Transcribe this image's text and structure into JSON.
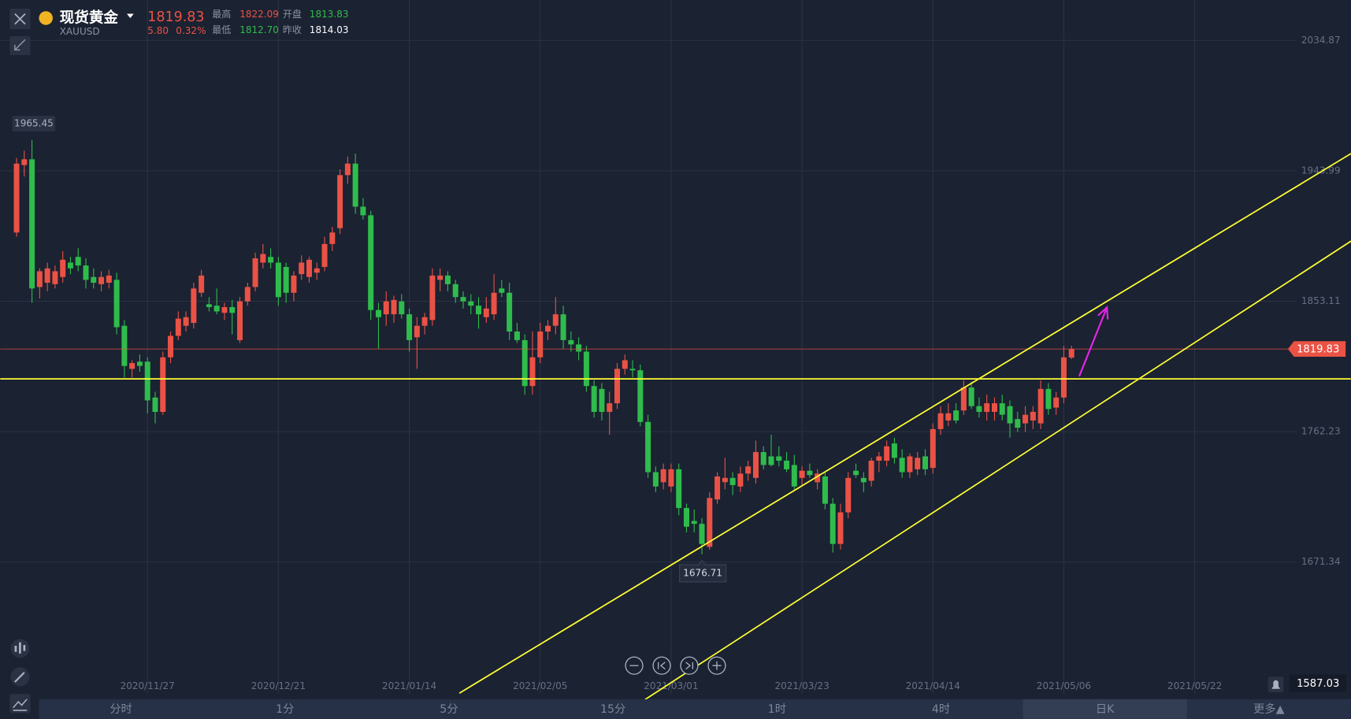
{
  "header": {
    "name": "现货黄金",
    "symbol": "XAUUSD",
    "last": "1819.83",
    "change": "5.80",
    "change_pct": "0.32%",
    "high_label": "最高",
    "high": "1822.09",
    "open_label": "开盘",
    "open": "1813.83",
    "low_label": "最低",
    "low": "1812.70",
    "prev_close_label": "昨收",
    "prev_close": "1814.03"
  },
  "chart_data": {
    "type": "candlestick",
    "categories": [
      null,
      null,
      null,
      null,
      null,
      null,
      null,
      null,
      null,
      null,
      null,
      null,
      null,
      null,
      null,
      null,
      null,
      "2020/11/27",
      null,
      null,
      null,
      null,
      null,
      null,
      null,
      null,
      null,
      null,
      null,
      null,
      null,
      null,
      null,
      null,
      "2020/12/21",
      null,
      null,
      null,
      null,
      null,
      null,
      null,
      null,
      null,
      null,
      null,
      null,
      null,
      null,
      null,
      null,
      "2021/01/14",
      null,
      null,
      null,
      null,
      null,
      null,
      null,
      null,
      null,
      null,
      null,
      null,
      null,
      null,
      null,
      null,
      "2021/02/05",
      null,
      null,
      null,
      null,
      null,
      null,
      null,
      null,
      null,
      null,
      null,
      null,
      null,
      null,
      null,
      null,
      "2021/03/01",
      null,
      null,
      null,
      null,
      null,
      null,
      null,
      null,
      null,
      null,
      null,
      null,
      null,
      null,
      null,
      null,
      "2021/03/23",
      null,
      null,
      null,
      null,
      null,
      null,
      null,
      null,
      null,
      null,
      null,
      null,
      null,
      null,
      null,
      null,
      "2021/04/14",
      null,
      null,
      null,
      null,
      null,
      null,
      null,
      null,
      null,
      null,
      null,
      null,
      null,
      null,
      null,
      null,
      "2021/05/06",
      null,
      null,
      null,
      null,
      null,
      null,
      null,
      null,
      null,
      null,
      null,
      null,
      null,
      null,
      null,
      null,
      "2021/05/22"
    ],
    "ohlc": [
      [
        1901,
        1953,
        1898,
        1949
      ],
      [
        1948,
        1958,
        1940,
        1952
      ],
      [
        1952,
        1965.45,
        1852,
        1862
      ],
      [
        1863,
        1876,
        1855,
        1874
      ],
      [
        1866,
        1880,
        1860,
        1876
      ],
      [
        1865,
        1878,
        1862,
        1874
      ],
      [
        1870,
        1888,
        1866,
        1882
      ],
      [
        1880,
        1884,
        1872,
        1876
      ],
      [
        1884,
        1890,
        1874,
        1878
      ],
      [
        1878,
        1883,
        1862,
        1868
      ],
      [
        1870,
        1876,
        1862,
        1866
      ],
      [
        1865,
        1874,
        1860,
        1870
      ],
      [
        1866,
        1875,
        1862,
        1871
      ],
      [
        1868,
        1873,
        1830,
        1835
      ],
      [
        1836,
        1840,
        1800,
        1808
      ],
      [
        1806,
        1812,
        1800,
        1810
      ],
      [
        1811,
        1816,
        1804,
        1808
      ],
      [
        1811,
        1814,
        1775,
        1784
      ],
      [
        1786,
        1790,
        1768,
        1776
      ],
      [
        1776,
        1818,
        1774,
        1814
      ],
      [
        1814,
        1832,
        1810,
        1829
      ],
      [
        1829,
        1846,
        1826,
        1841
      ],
      [
        1836,
        1846,
        1832,
        1842
      ],
      [
        1838,
        1866,
        1834,
        1862
      ],
      [
        1859,
        1875,
        1856,
        1871
      ],
      [
        1851,
        1856,
        1846,
        1849
      ],
      [
        1850,
        1862,
        1844,
        1846
      ],
      [
        1845,
        1852,
        1840,
        1849
      ],
      [
        1849,
        1854,
        1830,
        1845
      ],
      [
        1826,
        1856,
        1824,
        1853
      ],
      [
        1853,
        1866,
        1850,
        1863
      ],
      [
        1863,
        1887,
        1860,
        1883
      ],
      [
        1880,
        1893,
        1876,
        1886
      ],
      [
        1884,
        1890,
        1876,
        1880
      ],
      [
        1880,
        1884,
        1850,
        1856
      ],
      [
        1877,
        1880,
        1852,
        1859
      ],
      [
        1859,
        1874,
        1853,
        1871
      ],
      [
        1872,
        1885,
        1868,
        1880
      ],
      [
        1870,
        1884,
        1866,
        1882
      ],
      [
        1873,
        1880,
        1868,
        1876
      ],
      [
        1877,
        1898,
        1874,
        1893
      ],
      [
        1893,
        1905,
        1888,
        1901
      ],
      [
        1904,
        1945,
        1900,
        1941
      ],
      [
        1941,
        1954,
        1935,
        1949
      ],
      [
        1949,
        1956,
        1914,
        1919
      ],
      [
        1919,
        1925,
        1910,
        1913
      ],
      [
        1913,
        1916,
        1840,
        1847
      ],
      [
        1847,
        1852,
        1820,
        1842
      ],
      [
        1844,
        1860,
        1836,
        1853
      ],
      [
        1844,
        1857,
        1838,
        1854
      ],
      [
        1853,
        1858,
        1841,
        1844
      ],
      [
        1844,
        1848,
        1818,
        1826
      ],
      [
        1828,
        1842,
        1806,
        1836
      ],
      [
        1836,
        1845,
        1830,
        1842
      ],
      [
        1840,
        1876,
        1836,
        1871
      ],
      [
        1868,
        1876,
        1860,
        1871
      ],
      [
        1871,
        1874,
        1860,
        1865
      ],
      [
        1865,
        1868,
        1852,
        1856
      ],
      [
        1856,
        1860,
        1848,
        1853
      ],
      [
        1853,
        1858,
        1844,
        1850
      ],
      [
        1850,
        1856,
        1834,
        1844
      ],
      [
        1842,
        1856,
        1838,
        1848
      ],
      [
        1844,
        1872,
        1840,
        1859
      ],
      [
        1862,
        1868,
        1856,
        1859
      ],
      [
        1859,
        1866,
        1826,
        1832
      ],
      [
        1832,
        1838,
        1824,
        1826
      ],
      [
        1826,
        1830,
        1788,
        1794
      ],
      [
        1794,
        1832,
        1788,
        1814
      ],
      [
        1814,
        1838,
        1810,
        1832
      ],
      [
        1832,
        1840,
        1826,
        1836
      ],
      [
        1836,
        1856,
        1830,
        1844
      ],
      [
        1844,
        1850,
        1820,
        1826
      ],
      [
        1826,
        1832,
        1818,
        1823
      ],
      [
        1823,
        1828,
        1812,
        1818
      ],
      [
        1818,
        1822,
        1790,
        1794
      ],
      [
        1794,
        1798,
        1772,
        1776
      ],
      [
        1792,
        1796,
        1770,
        1776
      ],
      [
        1776,
        1790,
        1760,
        1782
      ],
      [
        1782,
        1810,
        1778,
        1806
      ],
      [
        1806,
        1816,
        1802,
        1812
      ],
      [
        1806,
        1812,
        1800,
        1805
      ],
      [
        1805,
        1809,
        1766,
        1769
      ],
      [
        1769,
        1774,
        1730,
        1734
      ],
      [
        1734,
        1738,
        1720,
        1724
      ],
      [
        1727,
        1740,
        1722,
        1736
      ],
      [
        1724,
        1740,
        1720,
        1736
      ],
      [
        1736,
        1740,
        1704,
        1709
      ],
      [
        1709,
        1712,
        1692,
        1696
      ],
      [
        1700,
        1708,
        1692,
        1698
      ],
      [
        1698,
        1702,
        1676.71,
        1684
      ],
      [
        1682,
        1720,
        1680,
        1716
      ],
      [
        1715,
        1734,
        1712,
        1731
      ],
      [
        1727,
        1744,
        1722,
        1730
      ],
      [
        1730,
        1734,
        1718,
        1725
      ],
      [
        1724,
        1738,
        1720,
        1733
      ],
      [
        1733,
        1742,
        1728,
        1738
      ],
      [
        1730,
        1756,
        1726,
        1748
      ],
      [
        1748,
        1752,
        1736,
        1739
      ],
      [
        1745,
        1760,
        1738,
        1739
      ],
      [
        1745,
        1752,
        1738,
        1742
      ],
      [
        1742,
        1748,
        1734,
        1736
      ],
      [
        1739,
        1746,
        1722,
        1724
      ],
      [
        1730,
        1738,
        1724,
        1735
      ],
      [
        1735,
        1740,
        1730,
        1732
      ],
      [
        1727,
        1736,
        1722,
        1733
      ],
      [
        1731,
        1734,
        1708,
        1712
      ],
      [
        1712,
        1716,
        1678,
        1684
      ],
      [
        1684,
        1712,
        1680,
        1706
      ],
      [
        1706,
        1734,
        1702,
        1730
      ],
      [
        1735,
        1740,
        1730,
        1732
      ],
      [
        1730,
        1734,
        1720,
        1727
      ],
      [
        1728,
        1744,
        1724,
        1742
      ],
      [
        1742,
        1748,
        1734,
        1745
      ],
      [
        1742,
        1756,
        1738,
        1752
      ],
      [
        1754,
        1758,
        1740,
        1744
      ],
      [
        1744,
        1750,
        1730,
        1734
      ],
      [
        1734,
        1747,
        1730,
        1745
      ],
      [
        1736,
        1748,
        1732,
        1744
      ],
      [
        1745,
        1750,
        1732,
        1736
      ],
      [
        1737,
        1768,
        1733,
        1764
      ],
      [
        1764,
        1780,
        1760,
        1775
      ],
      [
        1770,
        1782,
        1766,
        1775
      ],
      [
        1777,
        1782,
        1768,
        1770
      ],
      [
        1777,
        1798,
        1774,
        1793
      ],
      [
        1793,
        1797,
        1778,
        1780
      ],
      [
        1780,
        1786,
        1772,
        1776
      ],
      [
        1776,
        1788,
        1770,
        1782
      ],
      [
        1776,
        1786,
        1770,
        1782
      ],
      [
        1782,
        1788,
        1770,
        1774
      ],
      [
        1780,
        1784,
        1758,
        1768
      ],
      [
        1771,
        1776,
        1762,
        1765
      ],
      [
        1768,
        1780,
        1762,
        1774
      ],
      [
        1770,
        1780,
        1764,
        1776
      ],
      [
        1768,
        1798,
        1764,
        1792
      ],
      [
        1792,
        1796,
        1774,
        1778
      ],
      [
        1779,
        1790,
        1774,
        1786
      ],
      [
        1786,
        1822,
        1782,
        1814
      ],
      [
        1813.83,
        1822.09,
        1812.7,
        1819.83
      ],
      null,
      null,
      null,
      null,
      null,
      null,
      null,
      null,
      null,
      null,
      null,
      null,
      null,
      null,
      null,
      null
    ],
    "up_color": "#ea5245",
    "down_color": "#2fbc4c",
    "ylim": [
      1579.4,
      2063
    ],
    "yticks": [
      2034.87,
      1943.99,
      1853.11,
      1762.23,
      1671.34
    ],
    "grid": true,
    "cursor_price": 1587.03,
    "drawings": [
      {
        "kind": "hline",
        "value": 1799,
        "color": "#ffff33"
      },
      {
        "kind": "segment",
        "from": [
          57.5,
          1580
        ],
        "to": [
          173.3,
          1956
        ],
        "color": "#ffff33"
      },
      {
        "kind": "segment",
        "from": [
          80.6,
          1572
        ],
        "to": [
          173.3,
          1895
        ],
        "color": "#ffff33"
      },
      {
        "kind": "arrow",
        "from": [
          138,
          1800.8
        ],
        "to": [
          141.6,
          1848.8
        ],
        "color": "#e524e5"
      }
    ]
  },
  "tabs": [
    "分时",
    "1分",
    "5分",
    "15分",
    "1时",
    "4时",
    "日K",
    "更多▲"
  ],
  "selected_tab": 6
}
